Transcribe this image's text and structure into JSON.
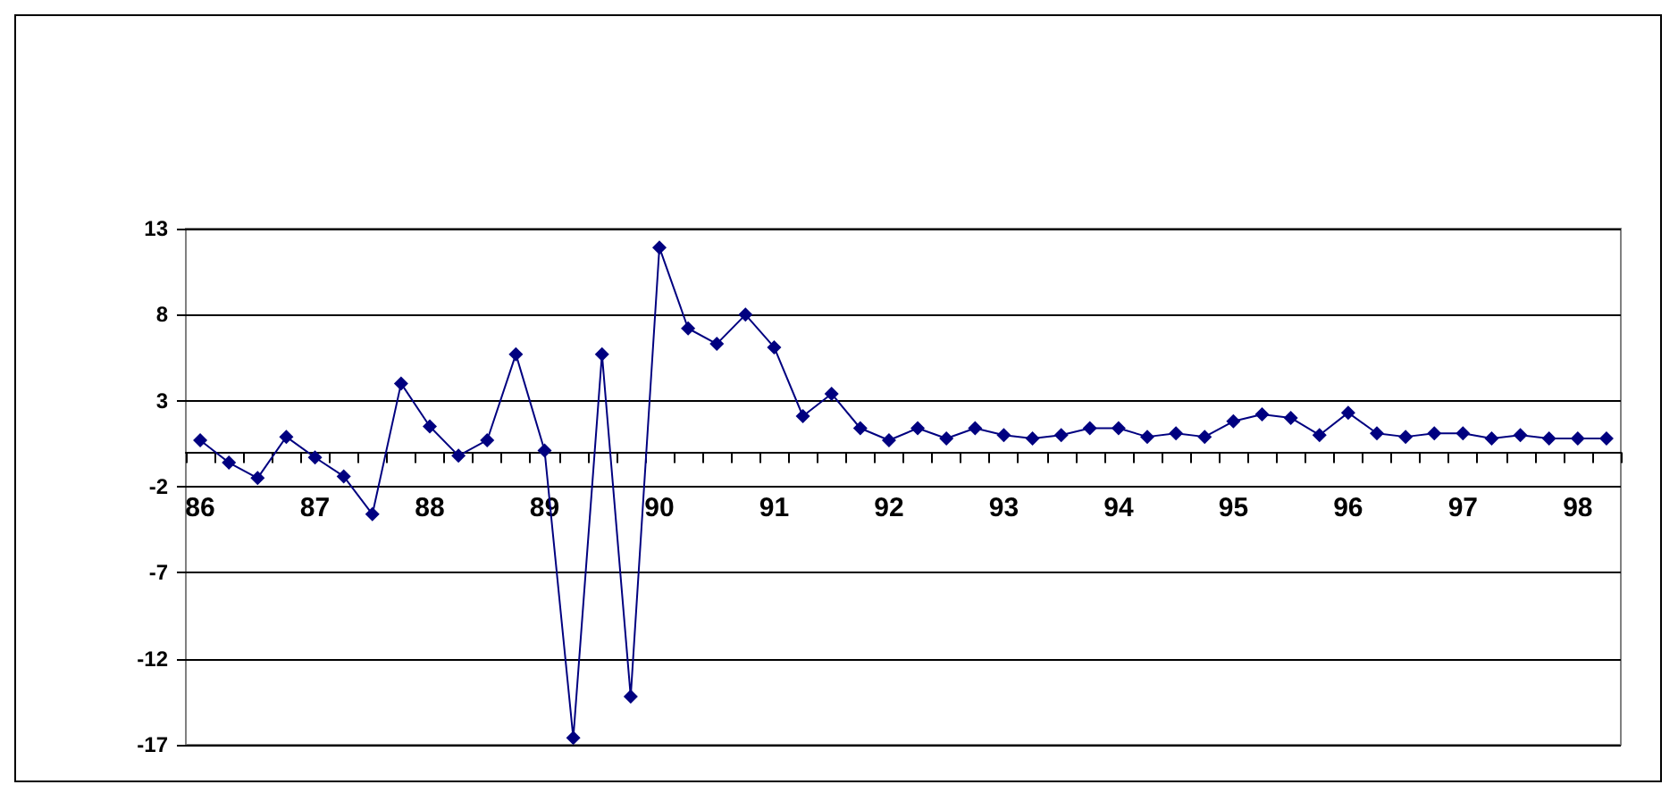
{
  "chart_data": {
    "type": "line",
    "categories": [
      "86",
      null,
      null,
      null,
      "87",
      null,
      null,
      null,
      "88",
      null,
      null,
      null,
      "89",
      null,
      null,
      null,
      "90",
      null,
      null,
      null,
      "91",
      null,
      null,
      null,
      "92",
      null,
      null,
      null,
      "93",
      null,
      null,
      null,
      "94",
      null,
      null,
      null,
      "95",
      null,
      null,
      null,
      "96",
      null,
      null,
      null,
      "97",
      null,
      null,
      null,
      "98",
      null
    ],
    "series": [
      {
        "color": "#000080",
        "values": [
          0.7,
          -0.6,
          -1.5,
          0.9,
          -0.3,
          -1.4,
          -3.6,
          4.0,
          1.5,
          -0.2,
          0.7,
          5.7,
          0.1,
          -16.6,
          5.7,
          -14.2,
          11.9,
          7.2,
          6.3,
          8.0,
          6.1,
          2.1,
          3.4,
          1.4,
          0.7,
          1.4,
          0.8,
          1.4,
          1.0,
          0.8,
          1.0,
          1.4,
          1.4,
          0.9,
          1.1,
          0.9,
          1.8,
          2.2,
          2.0,
          1.0,
          2.3,
          1.1,
          0.9,
          1.1,
          1.1,
          0.8,
          1.0,
          0.8,
          0.8,
          0.8
        ]
      }
    ],
    "ylim": [
      -17,
      13
    ],
    "yticks": [
      -17,
      -12,
      -7,
      -2,
      3,
      8,
      13
    ],
    "grid": "y",
    "marker": "diamond",
    "line_style": "solid"
  }
}
